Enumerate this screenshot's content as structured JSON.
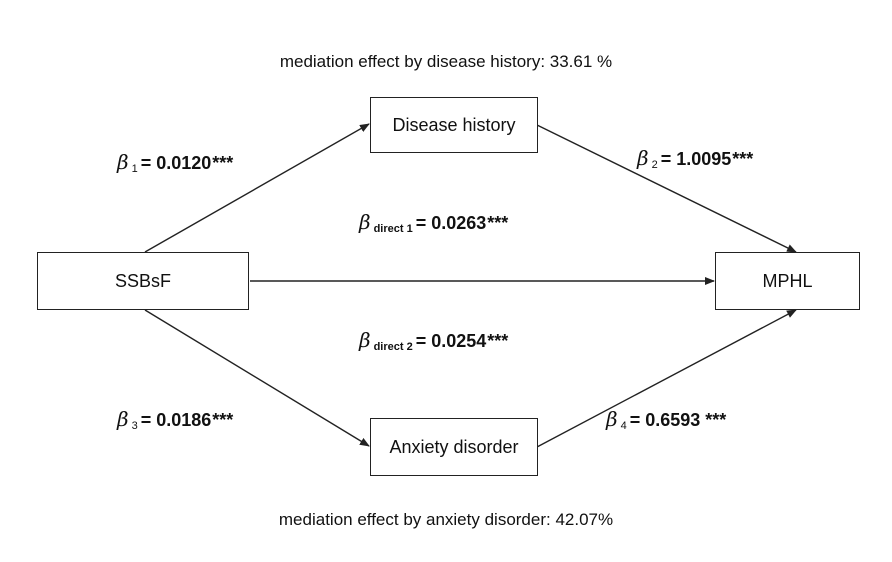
{
  "captions": {
    "top": "mediation effect by disease history: 33.61 %",
    "bottom": "mediation effect by anxiety disorder: 42.07%"
  },
  "nodes": {
    "exposure": "SSBsF",
    "outcome": "MPHL",
    "mediator1": "Disease history",
    "mediator2": "Anxiety disorder"
  },
  "coefficients": {
    "beta_symbol": "β",
    "equals": "=",
    "b1": {
      "sub": "1",
      "value": "0.0120",
      "sig": "***"
    },
    "b2": {
      "sub": "2",
      "value": "1.0095",
      "sig": "***"
    },
    "b3": {
      "sub": "3",
      "value": "0.0186",
      "sig": "***"
    },
    "b4": {
      "sub": "4",
      "value": "0.6593",
      "sig": "***"
    },
    "direct1": {
      "sub": "direct 1",
      "value": "0.0263",
      "sig": "***"
    },
    "direct2": {
      "sub": "direct 2",
      "value": "0.0254",
      "sig": "***"
    }
  },
  "colors": {
    "line": "#222222",
    "text": "#111111"
  }
}
